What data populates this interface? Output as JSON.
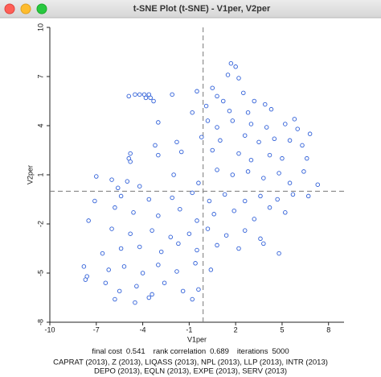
{
  "chart_data": {
    "type": "scatter",
    "title": "t-SNE Plot (t-SNE) - V1per, V2per",
    "xlabel": "V1per",
    "ylabel": "V2per",
    "xlim": [
      -10,
      9
    ],
    "ylim": [
      -8,
      10
    ],
    "xticks": [
      -10,
      -7,
      -4,
      -1,
      2,
      5,
      8
    ],
    "yticks": [
      -8,
      -5,
      -2,
      1,
      4,
      7,
      10
    ],
    "color": "#2f5fd8",
    "ref_lines": {
      "x": -0.1,
      "y": 0
    },
    "stats": [
      {
        "label": "final cost",
        "value": 0.541
      },
      {
        "label": "rank correlation",
        "value": 0.689
      },
      {
        "label": "iterations",
        "value": 5000
      }
    ],
    "variables": [
      "CAPRAT (2013), Z (2013), LIQASS (2013), NPL (2013), LLP (2013), INTR (2013)",
      "DEPO (2013), EQLN (2013), EXPE (2013), SERV (2013)"
    ],
    "x": [
      -4.5,
      -4.2,
      -3.9,
      -3.6,
      -3.8,
      -3.5,
      -3.3,
      -2.1,
      -4.9,
      -3.0,
      1.7,
      2.0,
      1.5,
      2.2,
      0.5,
      -0.5,
      0.8,
      1.2,
      0.1,
      2.5,
      3.2,
      3.9,
      4.3,
      1.6,
      2.8,
      -0.8,
      0.2,
      0.8,
      1.8,
      3.0,
      4.0,
      5.2,
      5.8,
      6.0,
      6.8,
      -3.2,
      -1.8,
      -0.2,
      1.0,
      2.6,
      3.5,
      4.5,
      5.5,
      6.3,
      -4.8,
      -4.9,
      -4.8,
      -3.0,
      -1.5,
      0.5,
      2.2,
      3.0,
      4.2,
      5.0,
      6.6,
      -7.0,
      -6.0,
      -5.0,
      -4.2,
      -2.0,
      -0.4,
      0.8,
      1.8,
      2.8,
      3.8,
      4.8,
      5.5,
      6.4,
      7.3,
      -5.6,
      -5.4,
      -3.6,
      -2.1,
      -0.8,
      0.3,
      1.3,
      2.6,
      3.6,
      4.7,
      5.7,
      6.7,
      -7.1,
      -7.5,
      -5.8,
      -4.6,
      -3.0,
      -1.6,
      -0.5,
      0.6,
      1.9,
      3.2,
      4.2,
      5.2,
      -6.0,
      -4.8,
      -3.4,
      -2.2,
      -1.0,
      0.2,
      1.4,
      2.6,
      3.6,
      4.8,
      -6.6,
      -5.4,
      -4.2,
      -2.8,
      -1.7,
      -0.5,
      0.8,
      2.2,
      3.8,
      -7.8,
      -7.6,
      -7.7,
      -6.2,
      -5.2,
      -4.0,
      -3.0,
      -1.8,
      -0.6,
      0.4,
      -6.4,
      -5.5,
      -4.4,
      -3.6,
      -2.6,
      -1.4,
      -0.4,
      -5.8,
      -3.4,
      -4.5,
      -0.8
    ],
    "values": [
      5.9,
      5.9,
      5.9,
      5.9,
      5.7,
      5.7,
      5.5,
      5.9,
      5.8,
      4.2,
      7.8,
      7.6,
      7.1,
      6.9,
      6.3,
      6.1,
      5.8,
      5.5,
      5.2,
      6.0,
      5.5,
      5.3,
      5.0,
      4.9,
      4.8,
      4.8,
      4.3,
      3.9,
      4.3,
      4.1,
      3.9,
      4.1,
      4.4,
      3.8,
      3.5,
      2.8,
      3.0,
      3.3,
      3.1,
      3.4,
      3.0,
      3.2,
      3.1,
      2.8,
      2.3,
      2.0,
      1.8,
      2.2,
      2.4,
      2.5,
      2.3,
      1.9,
      2.2,
      2.0,
      2.0,
      0.9,
      0.7,
      0.6,
      0.3,
      1.0,
      0.5,
      1.3,
      1.0,
      1.2,
      0.8,
      1.1,
      0.5,
      1.2,
      0.4,
      0.2,
      -0.3,
      -0.5,
      -0.4,
      -0.1,
      -0.6,
      -0.2,
      -0.6,
      -0.3,
      -0.5,
      -0.2,
      -0.3,
      -0.6,
      -1.8,
      -1.0,
      -1.3,
      -1.5,
      -1.1,
      -1.8,
      -1.4,
      -1.2,
      -1.7,
      -1.0,
      -1.3,
      -2.3,
      -2.6,
      -2.4,
      -2.8,
      -2.6,
      -2.3,
      -2.7,
      -2.4,
      -2.9,
      -3.8,
      -3.8,
      -3.5,
      -3.4,
      -3.7,
      -3.2,
      -3.6,
      -3.3,
      -3.5,
      -3.2,
      -4.6,
      -5.2,
      -5.4,
      -4.8,
      -4.6,
      -5.0,
      -4.5,
      -4.9,
      -4.4,
      -4.8,
      -5.6,
      -6.1,
      -5.8,
      -6.5,
      -5.6,
      -6.1,
      -6.0,
      -6.6,
      -6.3,
      -6.8,
      -6.6
    ]
  }
}
